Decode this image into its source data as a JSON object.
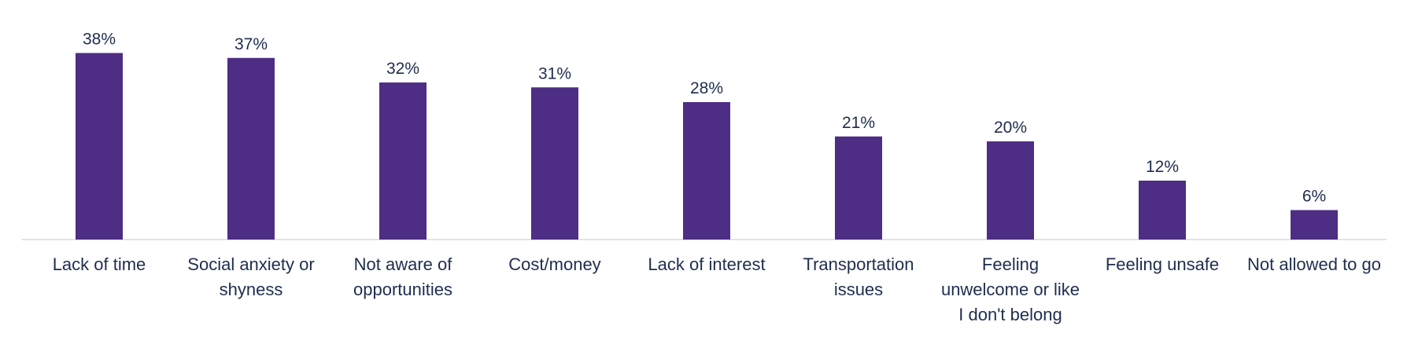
{
  "chart_data": {
    "type": "bar",
    "categories": [
      [
        "Lack of time"
      ],
      [
        "Social anxiety or",
        "shyness"
      ],
      [
        "Not aware of",
        "opportunities"
      ],
      [
        "Cost/money"
      ],
      [
        "Lack of interest"
      ],
      [
        "Transportation",
        "issues"
      ],
      [
        "Feeling",
        "unwelcome or like",
        "I don't belong"
      ],
      [
        "Feeling unsafe"
      ],
      [
        "Not allowed to go"
      ]
    ],
    "values": [
      38,
      37,
      32,
      31,
      28,
      21,
      20,
      12,
      6
    ],
    "data_labels": [
      "38%",
      "37%",
      "32%",
      "31%",
      "28%",
      "21%",
      "20%",
      "12%",
      "6%"
    ],
    "ylim": [
      0,
      40
    ],
    "grid": false,
    "colors": {
      "bar": "#4e2d84",
      "text": "#1f2d4e",
      "axis": "#d9d9e6"
    }
  }
}
